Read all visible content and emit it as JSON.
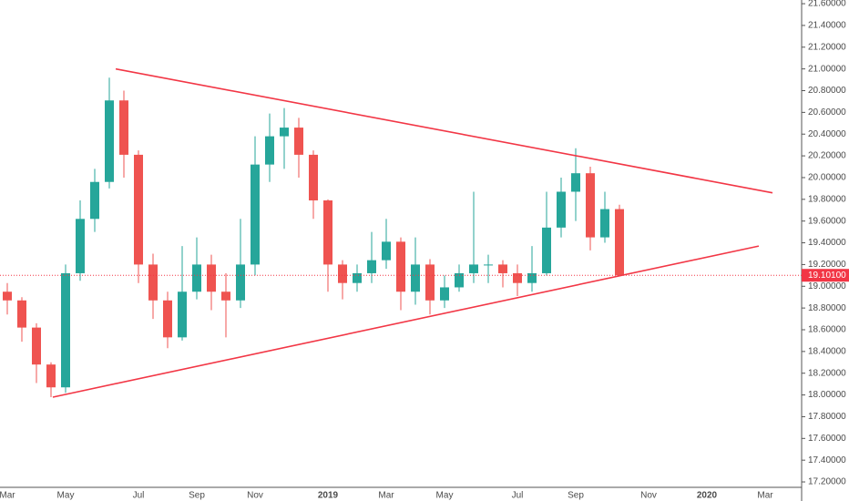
{
  "chart_data": {
    "type": "candlestick",
    "categories": [
      "Mar",
      null,
      null,
      null,
      "May",
      null,
      null,
      null,
      null,
      "Jul",
      null,
      null,
      null,
      "Sep",
      null,
      null,
      null,
      "Nov",
      null,
      null,
      null,
      null,
      "2019",
      null,
      null,
      null,
      "Mar",
      null,
      null,
      null,
      "May",
      null,
      null,
      null,
      null,
      "Jul",
      null,
      null,
      null,
      "Sep",
      null,
      null,
      null,
      null,
      "Nov",
      null,
      null,
      null,
      "2020",
      null,
      null,
      null,
      "Mar",
      null,
      null
    ],
    "open": [
      18.95,
      18.87,
      18.62,
      18.28,
      18.07,
      19.12,
      19.62,
      19.96,
      20.71,
      20.21,
      19.2,
      18.87,
      18.53,
      18.95,
      19.2,
      18.95,
      18.87,
      19.2,
      20.12,
      20.38,
      20.46,
      20.21,
      19.79,
      19.2,
      19.03,
      19.12,
      19.24,
      19.41,
      18.95,
      19.2,
      18.87,
      18.99,
      19.12,
      19.2,
      19.2,
      19.12,
      19.03,
      19.12,
      19.54,
      19.87,
      20.04,
      19.45,
      19.71,
      null,
      null,
      null,
      null,
      null,
      null,
      null,
      null,
      null,
      null,
      null,
      null
    ],
    "high": [
      19.03,
      18.9,
      18.66,
      18.3,
      19.2,
      19.79,
      20.08,
      20.92,
      20.8,
      20.25,
      19.3,
      18.95,
      19.37,
      19.45,
      19.29,
      19.12,
      19.62,
      20.38,
      20.59,
      20.64,
      20.55,
      20.25,
      19.8,
      19.24,
      19.2,
      19.5,
      19.62,
      19.45,
      19.45,
      19.25,
      19.1,
      19.2,
      19.87,
      19.29,
      19.24,
      19.2,
      19.37,
      19.87,
      20.0,
      20.27,
      20.1,
      19.87,
      19.75,
      null,
      null,
      null,
      null,
      null,
      null,
      null,
      null,
      null,
      null,
      null,
      null
    ],
    "low": [
      18.74,
      18.49,
      18.11,
      17.98,
      18.02,
      19.05,
      19.5,
      19.9,
      20.0,
      19.03,
      18.7,
      18.43,
      18.5,
      18.88,
      18.78,
      18.53,
      18.8,
      19.1,
      19.96,
      20.08,
      20.0,
      19.62,
      18.95,
      18.88,
      18.95,
      19.03,
      19.16,
      18.78,
      18.83,
      18.74,
      18.8,
      18.95,
      19.03,
      19.03,
      18.99,
      18.91,
      18.95,
      19.1,
      19.45,
      19.6,
      19.33,
      19.4,
      19.09,
      null,
      null,
      null,
      null,
      null,
      null,
      null,
      null,
      null,
      null,
      null,
      null
    ],
    "close": [
      18.87,
      18.62,
      18.28,
      18.07,
      19.12,
      19.62,
      19.96,
      20.71,
      20.21,
      19.2,
      18.87,
      18.53,
      18.95,
      19.2,
      18.95,
      18.87,
      19.2,
      20.12,
      20.38,
      20.46,
      20.21,
      19.79,
      19.2,
      19.03,
      19.12,
      19.24,
      19.41,
      18.95,
      19.2,
      18.87,
      18.99,
      19.12,
      19.2,
      19.2,
      19.12,
      19.03,
      19.12,
      19.54,
      19.87,
      20.04,
      19.45,
      19.71,
      19.101,
      null,
      null,
      null,
      null,
      null,
      null,
      null,
      null,
      null,
      null,
      null,
      null
    ],
    "up_color": "#26a69a",
    "down_color": "#ef5350",
    "ylim": [
      17.15,
      21.634
    ],
    "yticks": [
      {
        "value": 17.2,
        "label": "17.20000"
      },
      {
        "value": 17.4,
        "label": "17.40000"
      },
      {
        "value": 17.6,
        "label": "17.60000"
      },
      {
        "value": 17.8,
        "label": "17.80000"
      },
      {
        "value": 18.0,
        "label": "18.00000"
      },
      {
        "value": 18.2,
        "label": "18.20000"
      },
      {
        "value": 18.4,
        "label": "18.40000"
      },
      {
        "value": 18.6,
        "label": "18.60000"
      },
      {
        "value": 18.8,
        "label": "18.80000"
      },
      {
        "value": 19.0,
        "label": "19.00000"
      },
      {
        "value": 19.2,
        "label": "19.20000"
      },
      {
        "value": 19.4,
        "label": "19.40000"
      },
      {
        "value": 19.6,
        "label": "19.60000"
      },
      {
        "value": 19.8,
        "label": "19.80000"
      },
      {
        "value": 20.0,
        "label": "20.00000"
      },
      {
        "value": 20.2,
        "label": "20.20000"
      },
      {
        "value": 20.4,
        "label": "20.40000"
      },
      {
        "value": 20.6,
        "label": "20.60000"
      },
      {
        "value": 20.8,
        "label": "20.80000"
      },
      {
        "value": 21.0,
        "label": "21.00000"
      },
      {
        "value": 21.2,
        "label": "21.20000"
      },
      {
        "value": 21.4,
        "label": "21.40000"
      },
      {
        "value": 21.6,
        "label": "21.60000"
      }
    ],
    "last_price": {
      "value": 19.101,
      "label": "19.10100",
      "color": "#f23645"
    },
    "trendlines": [
      {
        "x": [
          7.44,
          52.5
        ],
        "y": [
          21.0,
          19.86
        ],
        "color": "#f23645"
      },
      {
        "x": [
          3.125,
          51.56
        ],
        "y": [
          17.98,
          19.37
        ],
        "color": "#f23645"
      }
    ]
  }
}
